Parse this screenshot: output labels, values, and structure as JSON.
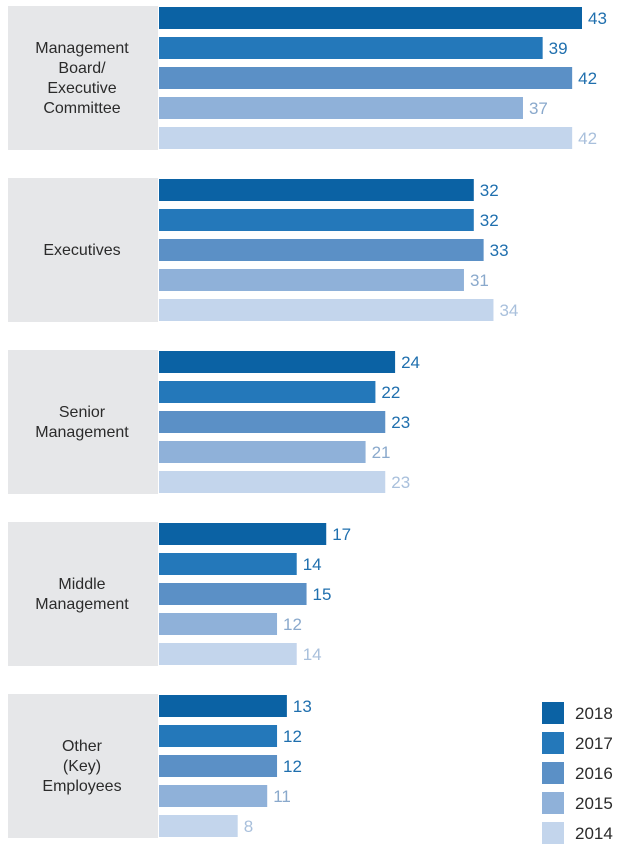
{
  "chart_data": {
    "type": "bar",
    "orientation": "horizontal",
    "categories": [
      "Management Board/ Executive Committee",
      "Executives",
      "Senior Management",
      "Middle Management",
      "Other (Key) Employees"
    ],
    "category_label_lines": [
      [
        "Management",
        "Board/",
        "Executive",
        "Committee"
      ],
      [
        "Executives"
      ],
      [
        "Senior",
        "Management"
      ],
      [
        "Middle",
        "Management"
      ],
      [
        "Other",
        "(Key)",
        "Employees"
      ]
    ],
    "series": [
      {
        "name": "2018",
        "color": "#0b62a4",
        "values": [
          43,
          32,
          24,
          17,
          13
        ]
      },
      {
        "name": "2017",
        "color": "#2478ba",
        "values": [
          39,
          32,
          22,
          14,
          12
        ]
      },
      {
        "name": "2016",
        "color": "#5b90c6",
        "values": [
          42,
          33,
          23,
          15,
          12
        ]
      },
      {
        "name": "2015",
        "color": "#8fb1d9",
        "values": [
          37,
          31,
          21,
          12,
          11
        ]
      },
      {
        "name": "2014",
        "color": "#c3d5ec",
        "values": [
          42,
          34,
          23,
          14,
          8
        ]
      }
    ],
    "value_label_colors": [
      "#1f6fae",
      "#1f6fae",
      "#1f6fae",
      "#8aa9cc",
      "#a9c0dc"
    ],
    "category_panel_color": "#e6e7e9",
    "legend_placement": "bottom-right",
    "grid": false,
    "xlim": [
      0,
      43
    ]
  }
}
